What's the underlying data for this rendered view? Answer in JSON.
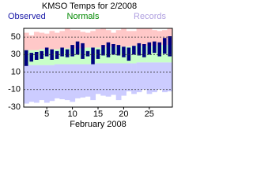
{
  "chart_data": {
    "type": "range",
    "title": "KMSO Temps for 2/2008",
    "x_label": "February 2008",
    "x": [
      1,
      2,
      3,
      4,
      5,
      6,
      7,
      8,
      9,
      10,
      11,
      12,
      13,
      14,
      15,
      16,
      17,
      18,
      19,
      20,
      21,
      22,
      23,
      24,
      25,
      26,
      27,
      28,
      29
    ],
    "xlim": [
      0.5,
      29.5
    ],
    "xticks": [
      5,
      10,
      15,
      20,
      25
    ],
    "ylim": [
      -30,
      60
    ],
    "yticks": [
      50,
      30,
      10,
      -10,
      -30
    ],
    "grid": true,
    "series": [
      {
        "name": "Records",
        "color": "#ffc8c8",
        "values": [
          55,
          52,
          56,
          55,
          54,
          57,
          55,
          57,
          60,
          58,
          58,
          56,
          55,
          57,
          59,
          60,
          58,
          55,
          58,
          60,
          57,
          57,
          60,
          60,
          60,
          58,
          57,
          58,
          60
        ]
      },
      {
        "name": "Records",
        "color": "#ccccff",
        "values": [
          -26,
          -24,
          -25,
          -22,
          -25,
          -23,
          -20,
          -21,
          -22,
          -24,
          -20,
          -19,
          -18,
          -22,
          -15,
          -17,
          -18,
          -16,
          -22,
          -17,
          -12,
          -15,
          -13,
          -10,
          -15,
          -13,
          -10,
          -13,
          -12
        ]
      },
      {
        "name": "Normals",
        "color": "#c8ffc8",
        "values": [
          35,
          35,
          35,
          36,
          36,
          36,
          36,
          37,
          37,
          37,
          37,
          37,
          38,
          38,
          38,
          38,
          39,
          39,
          39,
          39,
          39,
          40,
          40,
          40,
          40,
          40,
          41,
          41,
          41
        ]
      },
      {
        "name": "Normals",
        "color": "#c8ffc8",
        "values": [
          18,
          18,
          18,
          18,
          18,
          18,
          19,
          19,
          19,
          19,
          19,
          19,
          19,
          19,
          20,
          20,
          20,
          20,
          20,
          20,
          20,
          20,
          21,
          21,
          21,
          21,
          21,
          21,
          21
        ]
      },
      {
        "name": "Observed",
        "color": "#000080",
        "values": [
          35,
          32,
          33,
          34,
          38,
          36,
          34,
          38,
          36,
          41,
          45,
          43,
          34,
          38,
          36,
          41,
          44,
          42,
          41,
          39,
          38,
          40,
          43,
          42,
          44,
          45,
          44,
          49,
          51
        ]
      },
      {
        "name": "Observed",
        "color": "#000080",
        "values": [
          17,
          22,
          24,
          25,
          28,
          24,
          25,
          28,
          27,
          28,
          30,
          25,
          28,
          19,
          25,
          29,
          27,
          30,
          29,
          27,
          23,
          30,
          29,
          27,
          30,
          32,
          28,
          31,
          28
        ]
      }
    ]
  }
}
